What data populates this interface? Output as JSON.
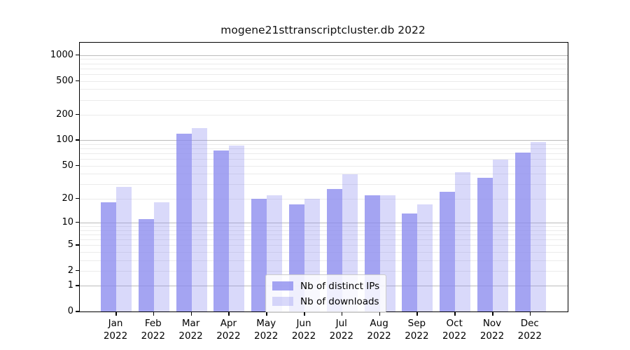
{
  "chart_data": {
    "type": "bar",
    "title": "mogene21sttranscriptcluster.db 2022",
    "categories": [
      "Jan 2022",
      "Feb 2022",
      "Mar 2022",
      "Apr 2022",
      "May 2022",
      "Jun 2022",
      "Jul 2022",
      "Aug 2022",
      "Sep 2022",
      "Oct 2022",
      "Nov 2022",
      "Dec 2022"
    ],
    "series": [
      {
        "name": "Nb of distinct IPs",
        "color": "rgba(138,138,238,0.78)",
        "values": [
          18,
          11,
          120,
          75,
          20,
          17,
          26,
          22,
          13,
          24,
          36,
          72
        ]
      },
      {
        "name": "Nb of downloads",
        "color": "rgba(138,138,238,0.32)",
        "values": [
          28,
          18,
          140,
          86,
          22,
          20,
          39,
          22,
          17,
          42,
          59,
          95
        ]
      }
    ],
    "xlabel": "",
    "ylabel": "",
    "y_scale": "log1p",
    "ylim": [
      0,
      1400
    ],
    "y_ticks": [
      1000,
      500,
      200,
      100,
      50,
      20,
      10,
      5,
      2,
      1,
      0
    ],
    "grid": {
      "on": true,
      "major": [
        1,
        10,
        100,
        1000
      ],
      "minor": [
        2,
        3,
        4,
        5,
        6,
        7,
        8,
        9,
        20,
        30,
        40,
        50,
        60,
        70,
        80,
        90,
        200,
        300,
        400,
        500,
        600,
        700,
        800,
        900
      ]
    },
    "legend_position": "bottom-center"
  },
  "colors": {
    "grid_major": "#bbbbbb",
    "grid_minor": "#ebebeb",
    "spine": "#000000",
    "text": "#000000"
  }
}
